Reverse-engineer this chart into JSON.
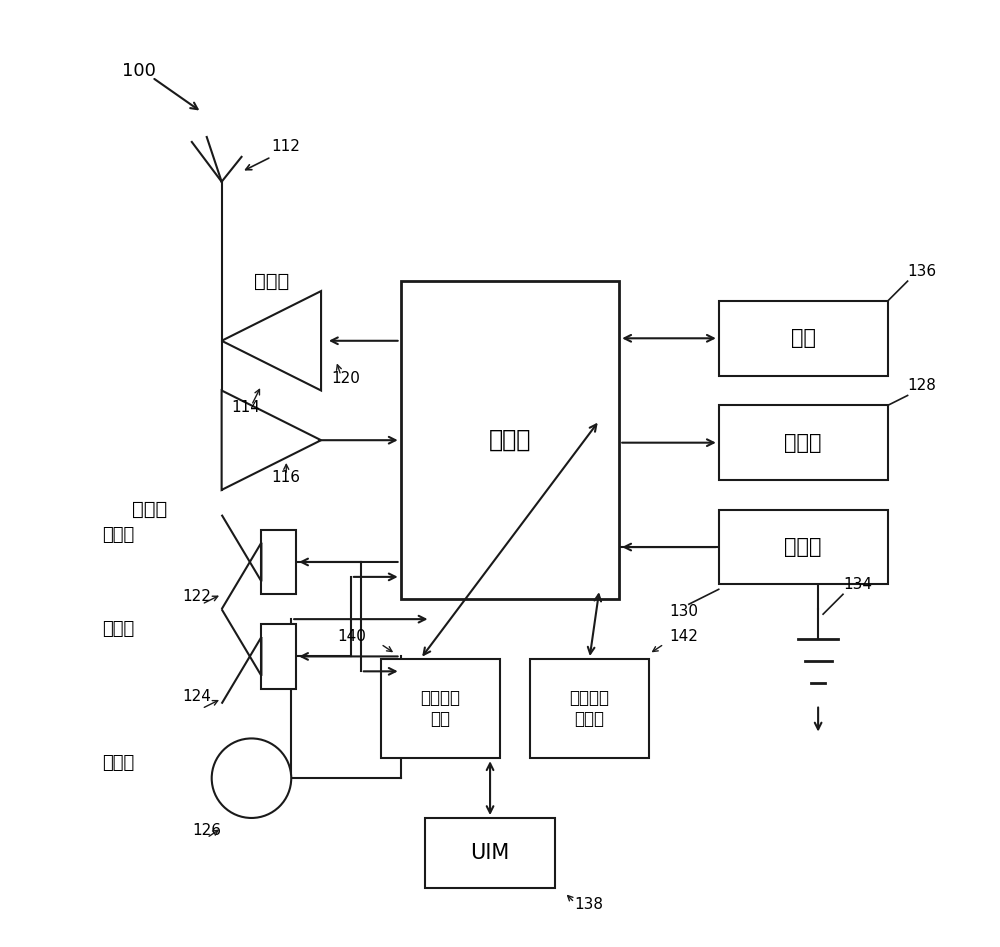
{
  "bg_color": "#ffffff",
  "line_color": "#1a1a1a",
  "label_100": "100",
  "label_112": "112",
  "label_114": "114",
  "label_116": "116",
  "label_120": "120",
  "label_122": "122",
  "label_124": "124",
  "label_126": "126",
  "label_128": "128",
  "label_130": "130",
  "label_134": "134",
  "label_136": "136",
  "label_138": "138",
  "label_140": "140",
  "label_142": "142",
  "text_transmitter": "发射机",
  "text_receiver": "接收机",
  "text_controller": "控制器",
  "text_camera": "相机",
  "text_display": "显示器",
  "text_keypad": "小键盘",
  "text_ringer": "振鄱器",
  "text_speaker": "扬声器",
  "text_mic": "麦克风",
  "text_volatile": "易失性存\n储器",
  "text_nonvolatile": "非易失性\n存储器",
  "text_uim": "UIM"
}
